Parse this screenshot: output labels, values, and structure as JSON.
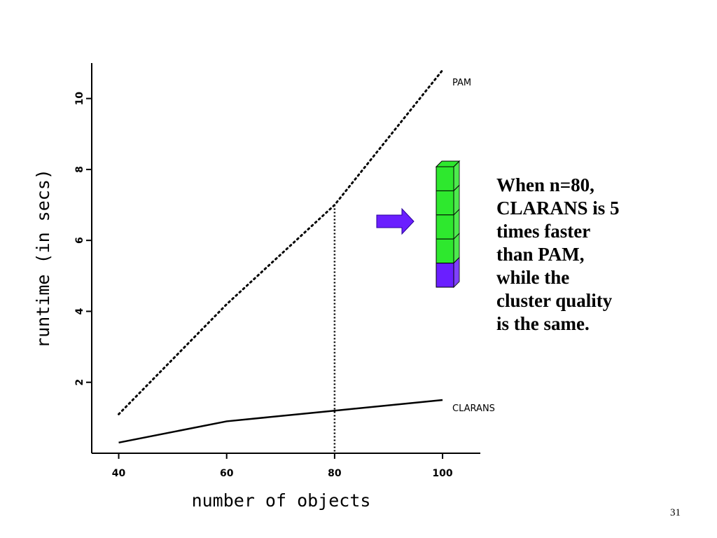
{
  "chart_data": {
    "type": "line",
    "xlabel": "number of objects",
    "ylabel": "runtime (in secs)",
    "xlim": [
      35,
      107
    ],
    "ylim": [
      0,
      11
    ],
    "x_ticks": [
      40,
      60,
      80,
      100
    ],
    "y_ticks": [
      2,
      4,
      6,
      8,
      10
    ],
    "grid": false,
    "series": [
      {
        "name": "PAM",
        "style": "dotted",
        "x": [
          40,
          60,
          80,
          100
        ],
        "y": [
          1.1,
          4.2,
          7.0,
          10.8
        ]
      },
      {
        "name": "CLARANS",
        "style": "solid",
        "x": [
          40,
          60,
          80,
          100
        ],
        "y": [
          0.3,
          0.9,
          1.2,
          1.5
        ]
      }
    ],
    "reference_line": {
      "x": 80,
      "y": 7.0,
      "style": "dotted"
    }
  },
  "annotation": {
    "lines": [
      "When n=80,",
      "CLARANS is 5",
      "times faster",
      "than PAM,",
      "while the",
      "cluster quality",
      "is the same."
    ]
  },
  "illustration": {
    "arrow_icon": "right-arrow-icon",
    "stack_segments": 5,
    "highlighted_segments": 1,
    "colors": {
      "arrow": "#6a1fff",
      "stack": "#2ee82e",
      "highlight": "#6a1fff"
    }
  },
  "page_number": "31"
}
